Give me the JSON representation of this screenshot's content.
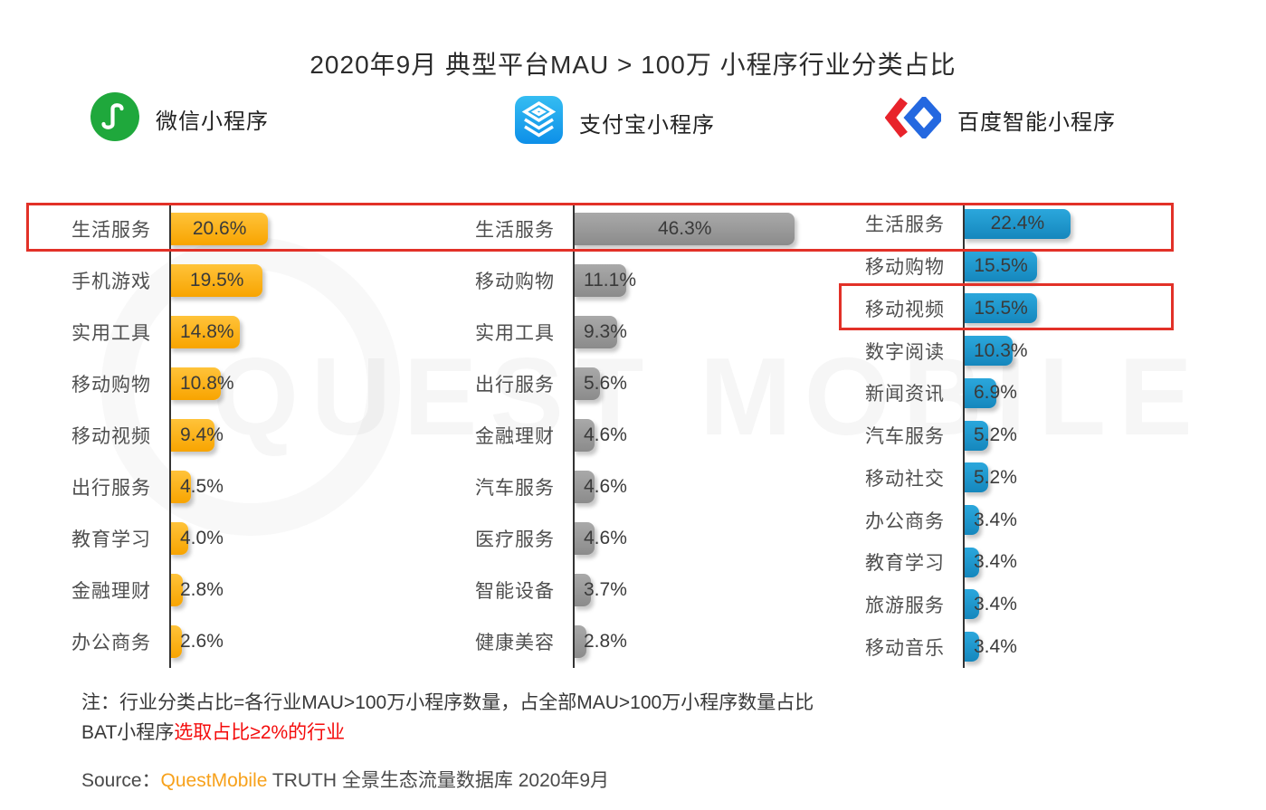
{
  "title": "2020年9月 典型平台MAU > 100万 小程序行业分类占比",
  "platforms": [
    {
      "name": "微信小程序",
      "icon": "wechat-miniprogram-icon",
      "bar_color_top": "#ffc33a",
      "bar_color_bottom": "#f8a400"
    },
    {
      "name": "支付宝小程序",
      "icon": "alipay-miniprogram-icon",
      "bar_color_top": "#a9a9a9",
      "bar_color_bottom": "#8b8b8b"
    },
    {
      "name": "百度智能小程序",
      "icon": "baidu-smartprogram-icon",
      "bar_color_top": "#2ba7dc",
      "bar_color_bottom": "#1587bd"
    }
  ],
  "chart_data": [
    {
      "type": "bar",
      "orientation": "horizontal",
      "title": "微信小程序",
      "unit": "%",
      "categories": [
        "生活服务",
        "手机游戏",
        "实用工具",
        "移动购物",
        "移动视频",
        "出行服务",
        "教育学习",
        "金融理财",
        "办公商务"
      ],
      "values": [
        20.6,
        19.5,
        14.8,
        10.8,
        9.4,
        4.5,
        4.0,
        2.8,
        2.6
      ]
    },
    {
      "type": "bar",
      "orientation": "horizontal",
      "title": "支付宝小程序",
      "unit": "%",
      "categories": [
        "生活服务",
        "移动购物",
        "实用工具",
        "出行服务",
        "金融理财",
        "汽车服务",
        "医疗服务",
        "智能设备",
        "健康美容"
      ],
      "values": [
        46.3,
        11.1,
        9.3,
        5.6,
        4.6,
        4.6,
        4.6,
        3.7,
        2.8
      ]
    },
    {
      "type": "bar",
      "orientation": "horizontal",
      "title": "百度智能小程序",
      "unit": "%",
      "categories": [
        "生活服务",
        "移动购物",
        "移动视频",
        "数字阅读",
        "新闻资讯",
        "汽车服务",
        "移动社交",
        "办公商务",
        "教育学习",
        "旅游服务",
        "移动音乐"
      ],
      "values": [
        22.4,
        15.5,
        15.5,
        10.3,
        6.9,
        5.2,
        5.2,
        3.4,
        3.4,
        3.4,
        3.4
      ]
    }
  ],
  "highlights": [
    {
      "row_label": "生活服务",
      "scope": "all-platforms"
    },
    {
      "row_label": "移动视频",
      "scope": "百度智能小程序"
    }
  ],
  "notes": {
    "line1": "注：行业分类占比=各行业MAU>100万小程序数量，占全部MAU>100万小程序数量占比",
    "line2_prefix": "BAT小程序",
    "line2_red": "选取占比≥2%的行业"
  },
  "source": {
    "label": "Source：",
    "brand": "QuestMobile",
    "rest": " TRUTH 全景生态流量数据库 2020年9月"
  },
  "watermark": "QUEST MOBILE",
  "colors": {
    "highlight_red": "#e23128",
    "brand_orange": "#f7a11b",
    "wechat_green": "#1fa83c",
    "alipay_blue": "#1296db",
    "baidu_blue": "#2468e0",
    "baidu_red": "#e8232b"
  }
}
